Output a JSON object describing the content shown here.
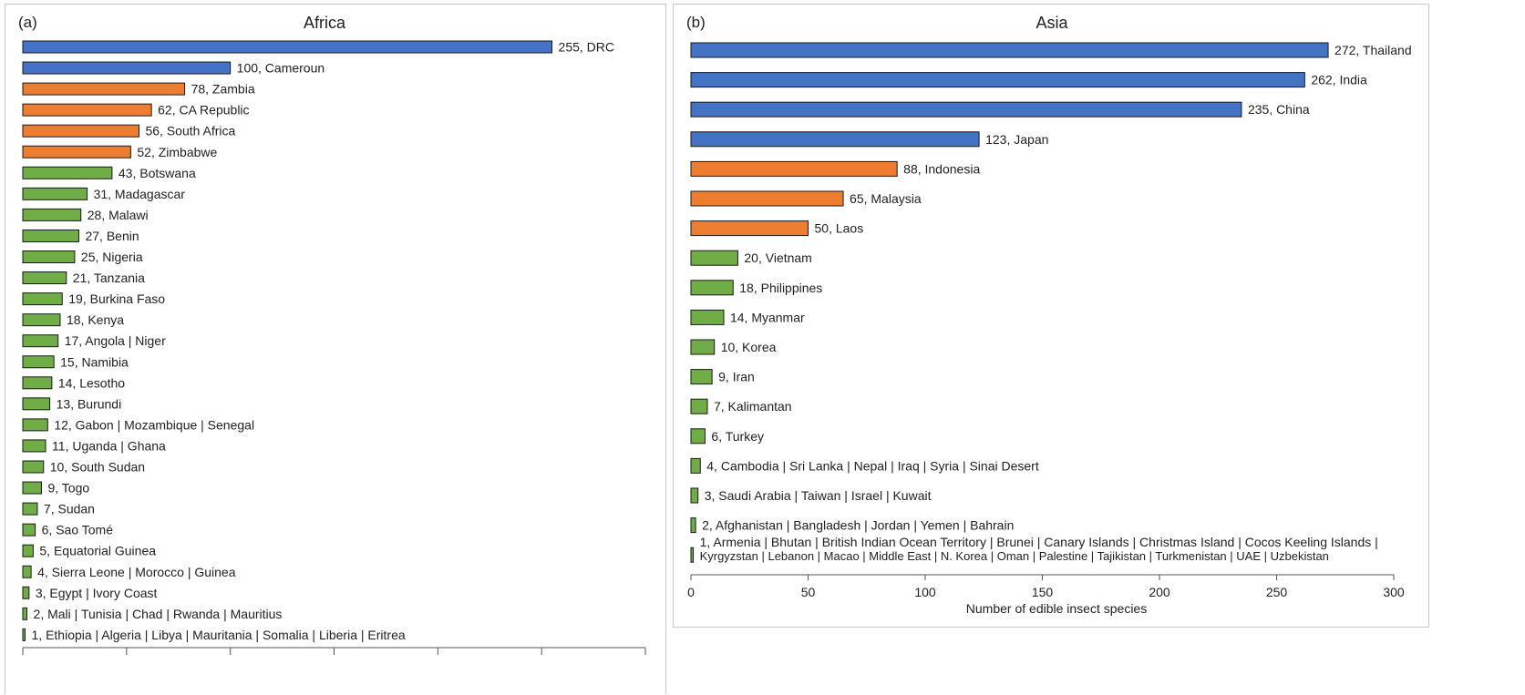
{
  "chart_data": [
    {
      "type": "bar",
      "orientation": "horizontal",
      "panel_label": "(a)",
      "title": "Africa",
      "xlabel": "",
      "xlim": [
        0,
        300
      ],
      "xticks_shown": false,
      "colors": {
        "high": "#4472c4",
        "mid": "#ed7d31",
        "low": "#70ad47",
        "stroke": "#1a1a1a"
      },
      "bars": [
        {
          "value": 255,
          "label": "255, DRC",
          "color": "high"
        },
        {
          "value": 100,
          "label": "100, Cameroun",
          "color": "high"
        },
        {
          "value": 78,
          "label": "78, Zambia",
          "color": "mid"
        },
        {
          "value": 62,
          "label": "62, CA Republic",
          "color": "mid"
        },
        {
          "value": 56,
          "label": "56, South Africa",
          "color": "mid"
        },
        {
          "value": 52,
          "label": "52, Zimbabwe",
          "color": "mid"
        },
        {
          "value": 43,
          "label": "43, Botswana",
          "color": "low"
        },
        {
          "value": 31,
          "label": "31, Madagascar",
          "color": "low"
        },
        {
          "value": 28,
          "label": "28, Malawi",
          "color": "low"
        },
        {
          "value": 27,
          "label": "27, Benin",
          "color": "low"
        },
        {
          "value": 25,
          "label": "25, Nigeria",
          "color": "low"
        },
        {
          "value": 21,
          "label": "21, Tanzania",
          "color": "low"
        },
        {
          "value": 19,
          "label": "19, Burkina Faso",
          "color": "low"
        },
        {
          "value": 18,
          "label": "18, Kenya",
          "color": "low"
        },
        {
          "value": 17,
          "label": "17, Angola | Niger",
          "color": "low"
        },
        {
          "value": 15,
          "label": "15, Namibia",
          "color": "low"
        },
        {
          "value": 14,
          "label": "14, Lesotho",
          "color": "low"
        },
        {
          "value": 13,
          "label": "13, Burundi",
          "color": "low"
        },
        {
          "value": 12,
          "label": "12, Gabon | Mozambique | Senegal",
          "color": "low"
        },
        {
          "value": 11,
          "label": "11, Uganda | Ghana",
          "color": "low"
        },
        {
          "value": 10,
          "label": "10, South Sudan",
          "color": "low"
        },
        {
          "value": 9,
          "label": "9, Togo",
          "color": "low"
        },
        {
          "value": 7,
          "label": "7, Sudan",
          "color": "low"
        },
        {
          "value": 6,
          "label": "6, Sao Tomé",
          "color": "low"
        },
        {
          "value": 5,
          "label": "5, Equatorial Guinea",
          "color": "low"
        },
        {
          "value": 4,
          "label": "4, Sierra Leone | Morocco | Guinea",
          "color": "low"
        },
        {
          "value": 3,
          "label": "3, Egypt | Ivory Coast",
          "color": "low"
        },
        {
          "value": 2,
          "label": "2, Mali | Tunisia | Chad | Rwanda | Mauritius",
          "color": "low"
        },
        {
          "value": 1,
          "label": "1, Ethiopia | Algeria | Libya | Mauritania | Somalia | Liberia | Eritrea",
          "color": "low"
        }
      ]
    },
    {
      "type": "bar",
      "orientation": "horizontal",
      "panel_label": "(b)",
      "title": "Asia",
      "xlabel": "Number of edible insect species",
      "xlim": [
        0,
        300
      ],
      "xticks": [
        "0",
        "50",
        "100",
        "150",
        "200",
        "250",
        "300"
      ],
      "xtick_values": [
        0,
        50,
        100,
        150,
        200,
        250,
        300
      ],
      "colors": {
        "high": "#4472c4",
        "mid": "#ed7d31",
        "low": "#70ad47",
        "stroke": "#1a1a1a"
      },
      "bars": [
        {
          "value": 272,
          "label": "272, Thailand",
          "color": "high"
        },
        {
          "value": 262,
          "label": "262, India",
          "color": "high"
        },
        {
          "value": 235,
          "label": "235, China",
          "color": "high"
        },
        {
          "value": 123,
          "label": "123, Japan",
          "color": "high"
        },
        {
          "value": 88,
          "label": "88, Indonesia",
          "color": "mid"
        },
        {
          "value": 65,
          "label": "65, Malaysia",
          "color": "mid"
        },
        {
          "value": 50,
          "label": "50, Laos",
          "color": "mid"
        },
        {
          "value": 20,
          "label": "20, Vietnam",
          "color": "low"
        },
        {
          "value": 18,
          "label": "18, Philippines",
          "color": "low"
        },
        {
          "value": 14,
          "label": "14, Myanmar",
          "color": "low"
        },
        {
          "value": 10,
          "label": "10, Korea",
          "color": "low"
        },
        {
          "value": 9,
          "label": "9, Iran",
          "color": "low"
        },
        {
          "value": 7,
          "label": "7, Kalimantan",
          "color": "low"
        },
        {
          "value": 6,
          "label": "6, Turkey",
          "color": "low"
        },
        {
          "value": 4,
          "label": "4, Cambodia | Sri Lanka | Nepal | Iraq | Syria | Sinai Desert",
          "color": "low"
        },
        {
          "value": 3,
          "label": "3, Saudi Arabia | Taiwan | Israel | Kuwait",
          "color": "low"
        },
        {
          "value": 2,
          "label": "2, Afghanistan | Bangladesh | Jordan | Yemen | Bahrain",
          "color": "low"
        },
        {
          "value": 1,
          "label": "1, Armenia | Bhutan | British Indian Ocean Territory | Brunei | Canary Islands | Christmas Island | Cocos Keeling Islands |",
          "label2": "Kyrgyzstan | Lebanon | Macao | Middle East | N. Korea | Oman | Palestine | Tajikistan | Turkmenistan | UAE | Uzbekistan",
          "color": "low"
        }
      ]
    }
  ]
}
